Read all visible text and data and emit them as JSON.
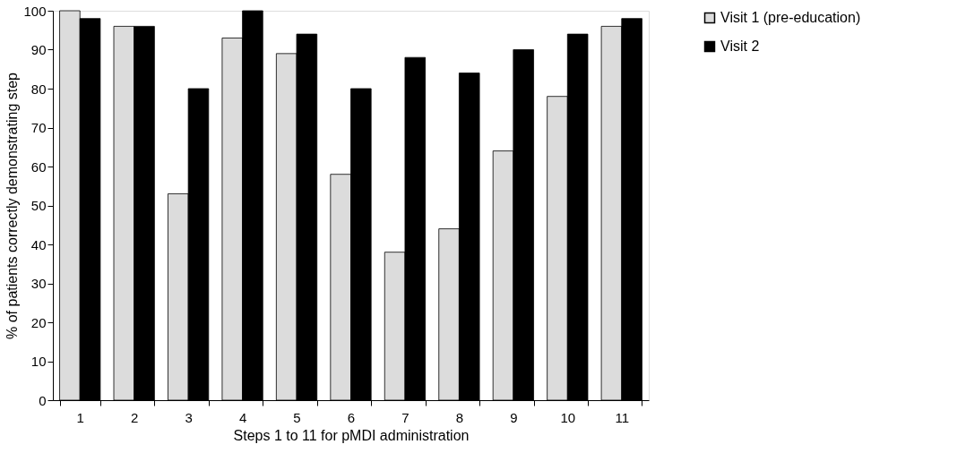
{
  "chart_data": {
    "type": "bar",
    "xlabel": "Steps 1 to 11 for pMDI administration",
    "ylabel": "% of patients correctly demonstrating step",
    "categories": [
      "1",
      "2",
      "3",
      "4",
      "5",
      "6",
      "7",
      "8",
      "9",
      "10",
      "11"
    ],
    "series": [
      {
        "name": "Visit 1 (pre-education)",
        "color": "#dcdcdc",
        "values": [
          100,
          96,
          53,
          93,
          89,
          58,
          38,
          44,
          64,
          78,
          96
        ]
      },
      {
        "name": "Visit 2",
        "color": "#000000",
        "values": [
          98,
          96,
          80,
          100,
          94,
          80,
          88,
          84,
          90,
          94,
          98
        ]
      }
    ],
    "ylim": [
      0,
      100
    ],
    "yticks": [
      0,
      10,
      20,
      30,
      40,
      50,
      60,
      70,
      80,
      90,
      100
    ],
    "grid": false,
    "legend": "right"
  }
}
